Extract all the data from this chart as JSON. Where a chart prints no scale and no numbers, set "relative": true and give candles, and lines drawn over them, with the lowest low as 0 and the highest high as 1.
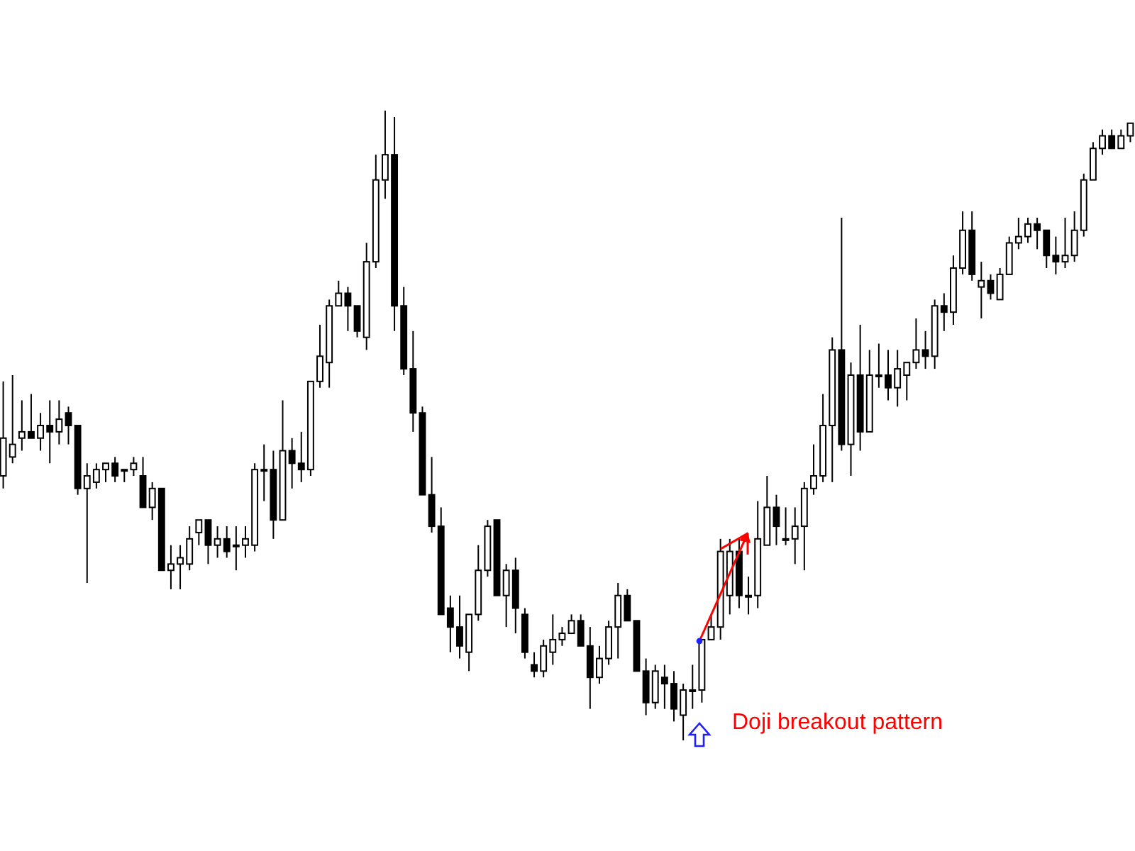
{
  "chart_data": {
    "type": "candlestick",
    "relative": true,
    "categories": [
      null,
      null,
      null,
      null,
      null,
      null,
      null,
      null,
      null,
      null,
      null,
      null,
      null,
      null,
      null,
      null,
      null,
      null,
      null,
      null,
      null,
      null,
      null,
      null,
      null,
      null,
      null,
      null,
      null,
      null,
      null,
      null,
      null,
      null,
      null,
      null,
      null,
      null,
      null,
      null,
      null,
      null,
      null,
      null,
      null,
      null,
      null,
      null,
      null,
      null,
      null,
      null,
      null,
      null,
      null,
      null,
      null,
      null,
      null,
      null,
      null,
      null,
      null,
      null,
      null,
      null,
      null,
      null,
      null,
      null,
      null,
      null,
      null,
      null,
      null,
      null,
      null,
      null,
      null,
      null,
      null,
      null,
      null,
      null,
      null,
      null,
      null,
      null,
      null,
      null,
      null,
      null,
      null,
      null,
      null,
      null,
      null,
      null,
      null,
      null,
      null,
      null,
      null,
      null,
      null,
      null,
      null,
      null,
      null,
      null,
      null,
      null,
      null,
      null,
      null,
      null,
      null,
      null,
      null,
      null,
      null,
      null
    ],
    "ohlc": [
      [
        0.42,
        0.57,
        0.4,
        0.48
      ],
      [
        0.45,
        0.58,
        0.44,
        0.47
      ],
      [
        0.48,
        0.54,
        0.46,
        0.49
      ],
      [
        0.49,
        0.55,
        0.48,
        0.48
      ],
      [
        0.48,
        0.52,
        0.46,
        0.5
      ],
      [
        0.5,
        0.54,
        0.44,
        0.49
      ],
      [
        0.49,
        0.54,
        0.47,
        0.51
      ],
      [
        0.52,
        0.53,
        0.47,
        0.5
      ],
      [
        0.5,
        0.5,
        0.39,
        0.4
      ],
      [
        0.4,
        0.44,
        0.25,
        0.42
      ],
      [
        0.41,
        0.44,
        0.4,
        0.43
      ],
      [
        0.43,
        0.44,
        0.41,
        0.44
      ],
      [
        0.44,
        0.45,
        0.41,
        0.42
      ],
      [
        0.43,
        0.43,
        0.41,
        0.43
      ],
      [
        0.43,
        0.45,
        0.42,
        0.44
      ],
      [
        0.42,
        0.45,
        0.37,
        0.37
      ],
      [
        0.37,
        0.41,
        0.35,
        0.4
      ],
      [
        0.4,
        0.4,
        0.27,
        0.27
      ],
      [
        0.27,
        0.31,
        0.24,
        0.28
      ],
      [
        0.28,
        0.31,
        0.24,
        0.29
      ],
      [
        0.28,
        0.34,
        0.27,
        0.32
      ],
      [
        0.33,
        0.35,
        0.31,
        0.35
      ],
      [
        0.35,
        0.35,
        0.28,
        0.31
      ],
      [
        0.31,
        0.34,
        0.29,
        0.32
      ],
      [
        0.32,
        0.34,
        0.29,
        0.3
      ],
      [
        0.31,
        0.34,
        0.27,
        0.31
      ],
      [
        0.31,
        0.34,
        0.29,
        0.32
      ],
      [
        0.31,
        0.44,
        0.3,
        0.43
      ],
      [
        0.43,
        0.47,
        0.38,
        0.43
      ],
      [
        0.43,
        0.46,
        0.32,
        0.35
      ],
      [
        0.35,
        0.54,
        0.35,
        0.46
      ],
      [
        0.46,
        0.48,
        0.4,
        0.44
      ],
      [
        0.44,
        0.49,
        0.41,
        0.43
      ],
      [
        0.43,
        0.57,
        0.42,
        0.57
      ],
      [
        0.57,
        0.66,
        0.56,
        0.61
      ],
      [
        0.6,
        0.7,
        0.56,
        0.69
      ],
      [
        0.69,
        0.73,
        0.69,
        0.71
      ],
      [
        0.71,
        0.72,
        0.65,
        0.69
      ],
      [
        0.69,
        0.69,
        0.64,
        0.65
      ],
      [
        0.64,
        0.79,
        0.62,
        0.76
      ],
      [
        0.76,
        0.93,
        0.75,
        0.89
      ],
      [
        0.89,
        1.0,
        0.86,
        0.93
      ],
      [
        0.93,
        0.99,
        0.65,
        0.69
      ],
      [
        0.69,
        0.72,
        0.58,
        0.59
      ],
      [
        0.59,
        0.65,
        0.49,
        0.52
      ],
      [
        0.52,
        0.53,
        0.39,
        0.39
      ],
      [
        0.39,
        0.45,
        0.33,
        0.34
      ],
      [
        0.34,
        0.37,
        0.2,
        0.2
      ],
      [
        0.21,
        0.23,
        0.14,
        0.18
      ],
      [
        0.18,
        0.23,
        0.13,
        0.15
      ],
      [
        0.14,
        0.2,
        0.11,
        0.2
      ],
      [
        0.2,
        0.31,
        0.19,
        0.27
      ],
      [
        0.27,
        0.35,
        0.26,
        0.34
      ],
      [
        0.35,
        0.35,
        0.23,
        0.23
      ],
      [
        0.23,
        0.28,
        0.18,
        0.27
      ],
      [
        0.27,
        0.29,
        0.17,
        0.21
      ],
      [
        0.2,
        0.21,
        0.13,
        0.14
      ],
      [
        0.12,
        0.14,
        0.1,
        0.11
      ],
      [
        0.11,
        0.16,
        0.1,
        0.15
      ],
      [
        0.14,
        0.2,
        0.12,
        0.16
      ],
      [
        0.16,
        0.18,
        0.15,
        0.17
      ],
      [
        0.17,
        0.2,
        0.17,
        0.19
      ],
      [
        0.19,
        0.2,
        0.15,
        0.15
      ],
      [
        0.15,
        0.18,
        0.05,
        0.1
      ],
      [
        0.1,
        0.15,
        0.09,
        0.13
      ],
      [
        0.13,
        0.19,
        0.12,
        0.18
      ],
      [
        0.18,
        0.25,
        0.13,
        0.23
      ],
      [
        0.23,
        0.24,
        0.19,
        0.19
      ],
      [
        0.19,
        0.19,
        0.11,
        0.11
      ],
      [
        0.11,
        0.13,
        0.04,
        0.06
      ],
      [
        0.06,
        0.12,
        0.05,
        0.11
      ],
      [
        0.1,
        0.12,
        0.05,
        0.09
      ],
      [
        0.09,
        0.11,
        0.03,
        0.05
      ],
      [
        0.04,
        0.09,
        0.0,
        0.08
      ],
      [
        0.08,
        0.12,
        0.05,
        0.08
      ],
      [
        0.08,
        0.16,
        0.06,
        0.16
      ],
      [
        0.16,
        0.2,
        0.16,
        0.18
      ],
      [
        0.18,
        0.32,
        0.16,
        0.3
      ],
      [
        0.23,
        0.32,
        0.2,
        0.3
      ],
      [
        0.3,
        0.32,
        0.21,
        0.23
      ],
      [
        0.23,
        0.26,
        0.2,
        0.23
      ],
      [
        0.23,
        0.38,
        0.21,
        0.32
      ],
      [
        0.31,
        0.42,
        0.31,
        0.37
      ],
      [
        0.37,
        0.39,
        0.31,
        0.34
      ],
      [
        0.32,
        0.37,
        0.31,
        0.32
      ],
      [
        0.32,
        0.37,
        0.28,
        0.34
      ],
      [
        0.34,
        0.41,
        0.27,
        0.4
      ],
      [
        0.4,
        0.47,
        0.39,
        0.42
      ],
      [
        0.42,
        0.55,
        0.41,
        0.5
      ],
      [
        0.5,
        0.64,
        0.41,
        0.62
      ],
      [
        0.62,
        0.83,
        0.46,
        0.47
      ],
      [
        0.47,
        0.6,
        0.42,
        0.58
      ],
      [
        0.58,
        0.66,
        0.46,
        0.49
      ],
      [
        0.49,
        0.62,
        0.49,
        0.58
      ],
      [
        0.58,
        0.63,
        0.56,
        0.58
      ],
      [
        0.58,
        0.62,
        0.54,
        0.56
      ],
      [
        0.56,
        0.62,
        0.53,
        0.59
      ],
      [
        0.58,
        0.6,
        0.54,
        0.6
      ],
      [
        0.6,
        0.67,
        0.59,
        0.62
      ],
      [
        0.62,
        0.65,
        0.59,
        0.61
      ],
      [
        0.61,
        0.7,
        0.59,
        0.69
      ],
      [
        0.69,
        0.71,
        0.65,
        0.68
      ],
      [
        0.68,
        0.77,
        0.66,
        0.75
      ],
      [
        0.75,
        0.84,
        0.74,
        0.81
      ],
      [
        0.81,
        0.84,
        0.73,
        0.74
      ],
      [
        0.72,
        0.76,
        0.67,
        0.73
      ],
      [
        0.73,
        0.74,
        0.7,
        0.71
      ],
      [
        0.7,
        0.75,
        0.7,
        0.74
      ],
      [
        0.74,
        0.8,
        0.74,
        0.79
      ],
      [
        0.79,
        0.83,
        0.78,
        0.8
      ],
      [
        0.8,
        0.83,
        0.79,
        0.82
      ],
      [
        0.82,
        0.83,
        0.78,
        0.81
      ],
      [
        0.81,
        0.81,
        0.75,
        0.77
      ],
      [
        0.77,
        0.8,
        0.74,
        0.76
      ],
      [
        0.76,
        0.83,
        0.75,
        0.77
      ],
      [
        0.77,
        0.84,
        0.76,
        0.81
      ],
      [
        0.81,
        0.9,
        0.8,
        0.89
      ],
      [
        0.89,
        0.95,
        0.89,
        0.94
      ],
      [
        0.94,
        0.97,
        0.93,
        0.96
      ],
      [
        0.96,
        0.97,
        0.94,
        0.94
      ],
      [
        0.94,
        0.97,
        0.94,
        0.96
      ],
      [
        0.96,
        0.98,
        0.95,
        0.98
      ]
    ],
    "annotations": [
      "Doji breakout pattern"
    ]
  }
}
